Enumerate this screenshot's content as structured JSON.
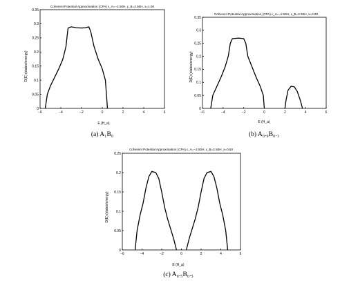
{
  "chart_data": [
    {
      "type": "line",
      "title": "Coherent Potential Approximation (CPA) ε_A=−2.50H, ε_B=2.50H, x=1.00",
      "xlabel": "E (H_a)",
      "ylabel": "D(E) (states/energy)",
      "xlim": [
        -6,
        6
      ],
      "ylim": [
        0,
        0.35
      ],
      "xticks": [
        "−6",
        "−4",
        "−2",
        "0",
        "2",
        "4",
        "6"
      ],
      "yticks": [
        "0",
        "0.05",
        "0.1",
        "0.15",
        "0.2",
        "0.25",
        "0.3",
        "0.35"
      ],
      "caption": "(a) A₁B₀",
      "series": [
        {
          "x": [
            -5.5,
            -5.3,
            -5.0,
            -4.6,
            -4.2,
            -3.8,
            -3.5,
            -3.35,
            -3.3,
            -3.0,
            -2.5,
            -2.0,
            -1.6,
            -1.3,
            -1.25,
            -1.1,
            -0.8,
            -0.4,
            0.0,
            0.3,
            0.5
          ],
          "y": [
            0.0,
            0.05,
            0.08,
            0.11,
            0.14,
            0.175,
            0.22,
            0.27,
            0.285,
            0.289,
            0.286,
            0.285,
            0.286,
            0.289,
            0.285,
            0.27,
            0.22,
            0.175,
            0.14,
            0.1,
            0.0
          ]
        }
      ]
    },
    {
      "type": "line",
      "title": "Coherent Potential Approximation (CPA) ε_A=−2.50H, ε_B=2.50H, x=0.90",
      "xlabel": "E (H_a)",
      "ylabel": "D(E) (states/energy)",
      "xlim": [
        -6,
        6
      ],
      "ylim": [
        0,
        0.35
      ],
      "xticks": [
        "−6",
        "−4",
        "−2",
        "0",
        "2",
        "4",
        "6"
      ],
      "yticks": [
        "0",
        "0.05",
        "0.1",
        "0.15",
        "0.2",
        "0.25",
        "0.3",
        "0.35"
      ],
      "caption": "(b) A₀.₉B₀.₁",
      "series": [
        {
          "x": [
            -5.2,
            -5.0,
            -4.6,
            -4.2,
            -3.8,
            -3.5,
            -3.3,
            -3.1,
            -2.5,
            -2.0,
            -1.8,
            -1.6,
            -1.2,
            -0.8,
            -0.4,
            -0.1,
            0.0
          ],
          "y": [
            0.0,
            0.05,
            0.085,
            0.12,
            0.16,
            0.2,
            0.25,
            0.268,
            0.27,
            0.268,
            0.25,
            0.2,
            0.16,
            0.12,
            0.085,
            0.05,
            0.0
          ]
        },
        {
          "x": [
            2.0,
            2.1,
            2.3,
            2.6,
            2.9,
            3.2,
            3.5,
            3.7
          ],
          "y": [
            0.0,
            0.03,
            0.07,
            0.085,
            0.083,
            0.065,
            0.03,
            0.0
          ]
        }
      ]
    },
    {
      "type": "line",
      "title": "Coherent Potential Approximation (CPA) ε_A=−2.50H, ε_B=2.50H, x=0.50",
      "xlabel": "E (H_a)",
      "ylabel": "D(E) (states/energy)",
      "xlim": [
        -6,
        6
      ],
      "ylim": [
        0,
        0.25
      ],
      "xticks": [
        "−6",
        "−4",
        "−2",
        "0",
        "2",
        "4",
        "6"
      ],
      "yticks": [
        "0",
        "0.05",
        "0.1",
        "0.15",
        "0.2",
        "0.25"
      ],
      "caption": "(c) A₀.₅B₀.₅",
      "series": [
        {
          "x": [
            -4.7,
            -4.5,
            -4.2,
            -3.9,
            -3.6,
            -3.3,
            -3.0,
            -2.6,
            -2.3,
            -2.0,
            -1.7,
            -1.4,
            -1.1,
            -0.8,
            -0.5
          ],
          "y": [
            0.0,
            0.05,
            0.09,
            0.12,
            0.16,
            0.19,
            0.203,
            0.2,
            0.185,
            0.15,
            0.11,
            0.08,
            0.055,
            0.03,
            0.0
          ]
        },
        {
          "x": [
            0.5,
            0.8,
            1.1,
            1.4,
            1.7,
            2.0,
            2.3,
            2.6,
            3.0,
            3.3,
            3.6,
            3.9,
            4.2,
            4.5,
            4.7
          ],
          "y": [
            0.0,
            0.03,
            0.055,
            0.08,
            0.11,
            0.15,
            0.185,
            0.2,
            0.203,
            0.19,
            0.16,
            0.12,
            0.09,
            0.05,
            0.0
          ]
        }
      ]
    }
  ]
}
